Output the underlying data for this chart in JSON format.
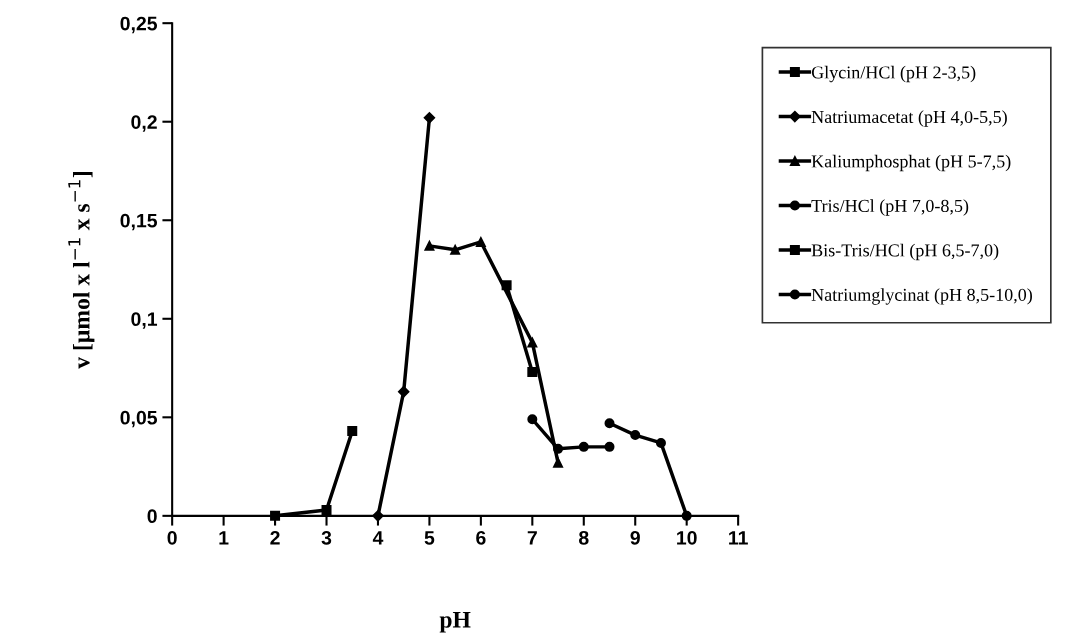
{
  "chart_data": {
    "type": "line",
    "xlabel": "pH",
    "ylabel": "v [µmol x l$^{−1}$ x s$^{−1}$]",
    "xlim": [
      0,
      11
    ],
    "ylim": [
      0,
      0.25
    ],
    "xticks": [
      0,
      1,
      2,
      3,
      4,
      5,
      6,
      7,
      8,
      9,
      10,
      11
    ],
    "yticks": [
      {
        "value": 0,
        "label": "0"
      },
      {
        "value": 0.05,
        "label": "0,05"
      },
      {
        "value": 0.1,
        "label": "0,1"
      },
      {
        "value": 0.15,
        "label": "0,15"
      },
      {
        "value": 0.2,
        "label": "0,2"
      },
      {
        "value": 0.25,
        "label": "0,25"
      }
    ],
    "grid": false,
    "legend": "top right",
    "line_style": "solid",
    "series": [
      {
        "name": "Glycin/HCl (pH 2-3,5)",
        "color": "#000000",
        "marker": "square",
        "x": [
          2,
          3,
          3.5
        ],
        "values": [
          0,
          0.003,
          0.043
        ]
      },
      {
        "name": "Natriumacetat (pH 4,0-5,5)",
        "color": "#000000",
        "marker": "diamond",
        "x": [
          4,
          4.5,
          5
        ],
        "values": [
          0,
          0.063,
          0.202
        ]
      },
      {
        "name": "Kaliumphosphat (pH 5-7,5)",
        "color": "#000000",
        "marker": "triangle",
        "x": [
          5,
          5.5,
          6,
          7,
          7.5
        ],
        "values": [
          0.137,
          0.135,
          0.139,
          0.088,
          0.027
        ]
      },
      {
        "name": "Tris/HCl (pH 7,0-8,5)",
        "color": "#000000",
        "marker": "circle",
        "x": [
          7,
          7.5,
          8,
          8.5
        ],
        "values": [
          0.049,
          0.034,
          0.035,
          0.035
        ]
      },
      {
        "name": "Bis-Tris/HCl (pH 6,5-7,0)",
        "color": "#000000",
        "marker": "square",
        "x": [
          6.5,
          7
        ],
        "values": [
          0.117,
          0.073
        ]
      },
      {
        "name": "Natriumglycinat (pH 8,5-10,0)",
        "color": "#000000",
        "marker": "circle",
        "x": [
          8.5,
          9,
          9.5,
          10
        ],
        "values": [
          0.047,
          0.041,
          0.037,
          0
        ]
      }
    ]
  }
}
